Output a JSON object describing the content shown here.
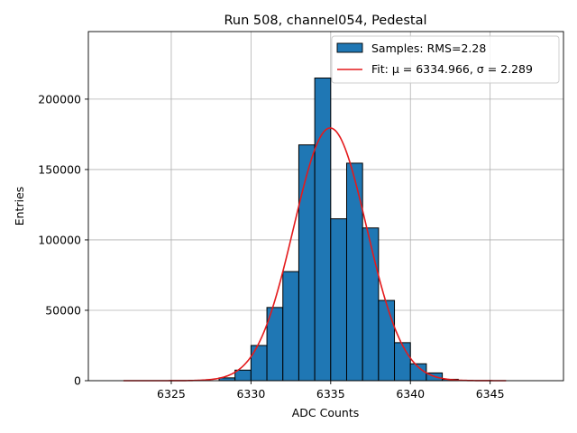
{
  "chart_data": {
    "type": "bar",
    "title": "Run 508, channel054, Pedestal",
    "xlabel": "ADC Counts",
    "ylabel": "Entries",
    "xlim": [
      6319.8,
      6349.6
    ],
    "ylim": [
      0,
      248000
    ],
    "xticks": [
      6325,
      6330,
      6335,
      6340,
      6345
    ],
    "yticks": [
      0,
      50000,
      100000,
      150000,
      200000
    ],
    "grid": true,
    "legend_position": "top-right",
    "histogram": {
      "name": "Samples: RMS=2.28",
      "bin_width": 1,
      "bins": [
        {
          "left": 6328,
          "value": 2000
        },
        {
          "left": 6329,
          "value": 7500
        },
        {
          "left": 6330,
          "value": 25000
        },
        {
          "left": 6331,
          "value": 52000
        },
        {
          "left": 6332,
          "value": 77500
        },
        {
          "left": 6333,
          "value": 167500
        },
        {
          "left": 6334,
          "value": 215000
        },
        {
          "left": 6335,
          "value": 115000
        },
        {
          "left": 6336,
          "value": 154500
        },
        {
          "left": 6337,
          "value": 108500
        },
        {
          "left": 6338,
          "value": 57000
        },
        {
          "left": 6339,
          "value": 27000
        },
        {
          "left": 6340,
          "value": 12000
        },
        {
          "left": 6341,
          "value": 5500
        },
        {
          "left": 6342,
          "value": 1000
        }
      ],
      "color": "#1f77b4",
      "edge_color": "#000000"
    },
    "fit": {
      "name_prefix": "Fit: ",
      "name_math": "μ = 6334.966, σ = 2.289",
      "mu": 6334.966,
      "sigma": 2.289,
      "amplitude": 179500,
      "x_range": [
        6322,
        6346
      ],
      "color": "#e41a1c"
    }
  }
}
